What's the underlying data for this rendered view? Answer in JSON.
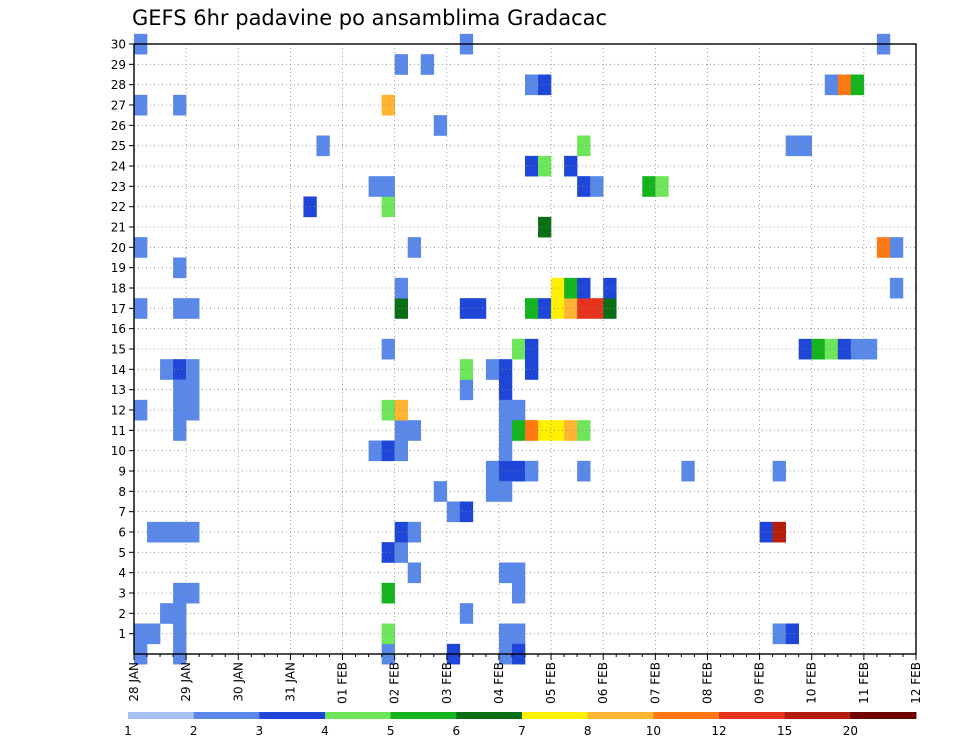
{
  "chart_data": {
    "type": "heatmap",
    "title": "GEFS 6hr padavine po ansamblima Gradacac",
    "xlabel": "",
    "ylabel": "",
    "x_tick_labels": [
      "28 JAN",
      "29 JAN",
      "30 JAN",
      "31 JAN",
      "01 FEB",
      "02 FEB",
      "03 FEB",
      "04 FEB",
      "05 FEB",
      "06 FEB",
      "07 FEB",
      "08 FEB",
      "09 FEB",
      "10 FEB",
      "11 FEB",
      "12 FEB"
    ],
    "y_tick_labels": [
      "1",
      "2",
      "3",
      "4",
      "5",
      "6",
      "7",
      "8",
      "9",
      "10",
      "11",
      "12",
      "13",
      "14",
      "15",
      "16",
      "17",
      "18",
      "19",
      "20",
      "21",
      "22",
      "23",
      "24",
      "25",
      "26",
      "27",
      "28",
      "29",
      "30"
    ],
    "x_range_days": [
      0,
      15
    ],
    "y_range": [
      0,
      30
    ],
    "grid": "dotted",
    "colorbar": {
      "placement": "bottom",
      "labels": [
        "1",
        "2",
        "3",
        "4",
        "5",
        "6",
        "7",
        "8",
        "10",
        "12",
        "15",
        "20"
      ],
      "colors": [
        "#a8c3f2",
        "#5a88e8",
        "#1e46d8",
        "#6ee65a",
        "#14b41e",
        "#0a6e14",
        "#fff000",
        "#ffb432",
        "#ff7814",
        "#e6321e",
        "#b41e0a",
        "#6e0000"
      ]
    },
    "cells": [
      [
        0.0,
        1,
        1
      ],
      [
        0.25,
        1,
        1
      ],
      [
        0.75,
        1,
        1
      ],
      [
        0.0,
        0,
        1
      ],
      [
        0.75,
        0,
        1
      ],
      [
        0.5,
        2,
        1
      ],
      [
        0.75,
        2,
        1
      ],
      [
        0.75,
        3,
        1
      ],
      [
        1.0,
        3,
        1
      ],
      [
        0.25,
        6,
        1
      ],
      [
        0.5,
        6,
        1
      ],
      [
        0.75,
        6,
        1
      ],
      [
        1.0,
        6,
        1
      ],
      [
        0.75,
        11,
        1
      ],
      [
        0.75,
        12,
        1
      ],
      [
        1.0,
        12,
        1
      ],
      [
        0.0,
        12,
        1
      ],
      [
        0.5,
        14,
        1
      ],
      [
        0.75,
        14,
        2
      ],
      [
        1.0,
        14,
        1
      ],
      [
        0.75,
        13,
        1
      ],
      [
        1.0,
        13,
        1
      ],
      [
        0.0,
        17,
        1
      ],
      [
        0.75,
        17,
        1
      ],
      [
        1.0,
        17,
        1
      ],
      [
        0.75,
        19,
        1
      ],
      [
        0.0,
        20,
        1
      ],
      [
        0.0,
        27,
        1
      ],
      [
        0.75,
        27,
        1
      ],
      [
        0.0,
        30,
        1
      ],
      [
        3.5,
        25,
        1
      ],
      [
        3.25,
        22,
        2
      ],
      [
        4.75,
        0,
        1
      ],
      [
        4.75,
        1,
        3
      ],
      [
        4.75,
        3,
        4
      ],
      [
        4.75,
        5,
        2
      ],
      [
        5.0,
        5,
        1
      ],
      [
        5.0,
        6,
        2
      ],
      [
        5.25,
        6,
        1
      ],
      [
        5.25,
        4,
        1
      ],
      [
        5.75,
        8,
        1
      ],
      [
        6.0,
        7,
        1
      ],
      [
        6.25,
        7,
        2
      ],
      [
        4.5,
        10,
        1
      ],
      [
        4.75,
        10,
        2
      ],
      [
        5.0,
        11,
        1
      ],
      [
        5.0,
        10,
        1
      ],
      [
        5.25,
        11,
        1
      ],
      [
        4.75,
        12,
        3
      ],
      [
        5.0,
        12,
        7
      ],
      [
        4.75,
        15,
        1
      ],
      [
        5.0,
        17,
        5
      ],
      [
        5.0,
        18,
        1
      ],
      [
        5.25,
        20,
        1
      ],
      [
        4.75,
        22,
        3
      ],
      [
        4.5,
        23,
        1
      ],
      [
        4.75,
        23,
        1
      ],
      [
        4.75,
        27,
        7
      ],
      [
        5.0,
        29,
        1
      ],
      [
        5.5,
        29,
        1
      ],
      [
        5.75,
        26,
        1
      ],
      [
        6.25,
        30,
        1
      ],
      [
        6.0,
        0,
        2
      ],
      [
        6.25,
        2,
        1
      ],
      [
        6.25,
        13,
        1
      ],
      [
        6.25,
        14,
        3
      ],
      [
        6.25,
        17,
        2
      ],
      [
        6.5,
        17,
        2
      ],
      [
        6.75,
        14,
        1
      ],
      [
        7.0,
        14,
        2
      ],
      [
        7.0,
        13,
        2
      ],
      [
        7.0,
        12,
        1
      ],
      [
        7.25,
        12,
        1
      ],
      [
        6.75,
        9,
        1
      ],
      [
        7.0,
        9,
        2
      ],
      [
        7.25,
        9,
        2
      ],
      [
        6.75,
        8,
        1
      ],
      [
        7.0,
        8,
        1
      ],
      [
        7.0,
        4,
        1
      ],
      [
        7.25,
        4,
        1
      ],
      [
        7.25,
        3,
        1
      ],
      [
        7.0,
        1,
        1
      ],
      [
        7.25,
        1,
        1
      ],
      [
        7.0,
        0,
        1
      ],
      [
        7.25,
        0,
        2
      ],
      [
        7.0,
        10,
        1
      ],
      [
        7.0,
        11,
        1
      ],
      [
        7.25,
        11,
        4
      ],
      [
        7.5,
        11,
        8
      ],
      [
        7.75,
        11,
        6
      ],
      [
        8.0,
        11,
        6
      ],
      [
        8.25,
        11,
        7
      ],
      [
        8.5,
        11,
        3
      ],
      [
        7.5,
        9,
        1
      ],
      [
        8.5,
        9,
        1
      ],
      [
        7.5,
        14,
        2
      ],
      [
        7.25,
        15,
        3
      ],
      [
        7.5,
        15,
        2
      ],
      [
        7.5,
        17,
        4
      ],
      [
        7.75,
        17,
        2
      ],
      [
        8.0,
        17,
        6
      ],
      [
        8.25,
        17,
        7
      ],
      [
        8.5,
        17,
        9
      ],
      [
        8.75,
        17,
        9
      ],
      [
        9.0,
        17,
        5
      ],
      [
        8.0,
        18,
        6
      ],
      [
        8.25,
        18,
        4
      ],
      [
        8.5,
        18,
        2
      ],
      [
        9.0,
        18,
        2
      ],
      [
        7.75,
        21,
        5
      ],
      [
        7.5,
        24,
        2
      ],
      [
        7.75,
        24,
        3
      ],
      [
        8.25,
        24,
        2
      ],
      [
        8.5,
        25,
        3
      ],
      [
        8.5,
        23,
        2
      ],
      [
        8.75,
        23,
        1
      ],
      [
        7.5,
        28,
        1
      ],
      [
        7.75,
        28,
        2
      ],
      [
        9.75,
        23,
        4
      ],
      [
        10.0,
        23,
        3
      ],
      [
        10.5,
        9,
        1
      ],
      [
        12.0,
        6,
        2
      ],
      [
        12.25,
        6,
        10
      ],
      [
        12.25,
        9,
        1
      ],
      [
        12.25,
        1,
        1
      ],
      [
        12.5,
        1,
        2
      ],
      [
        12.5,
        25,
        1
      ],
      [
        12.75,
        25,
        1
      ],
      [
        12.75,
        15,
        2
      ],
      [
        13.0,
        15,
        4
      ],
      [
        13.25,
        15,
        3
      ],
      [
        13.5,
        15,
        2
      ],
      [
        13.75,
        15,
        1
      ],
      [
        14.0,
        15,
        1
      ],
      [
        13.25,
        28,
        1
      ],
      [
        13.5,
        28,
        8
      ],
      [
        13.75,
        28,
        4
      ],
      [
        14.25,
        20,
        8
      ],
      [
        14.5,
        20,
        1
      ],
      [
        14.5,
        18,
        1
      ],
      [
        14.25,
        30,
        1
      ]
    ]
  }
}
